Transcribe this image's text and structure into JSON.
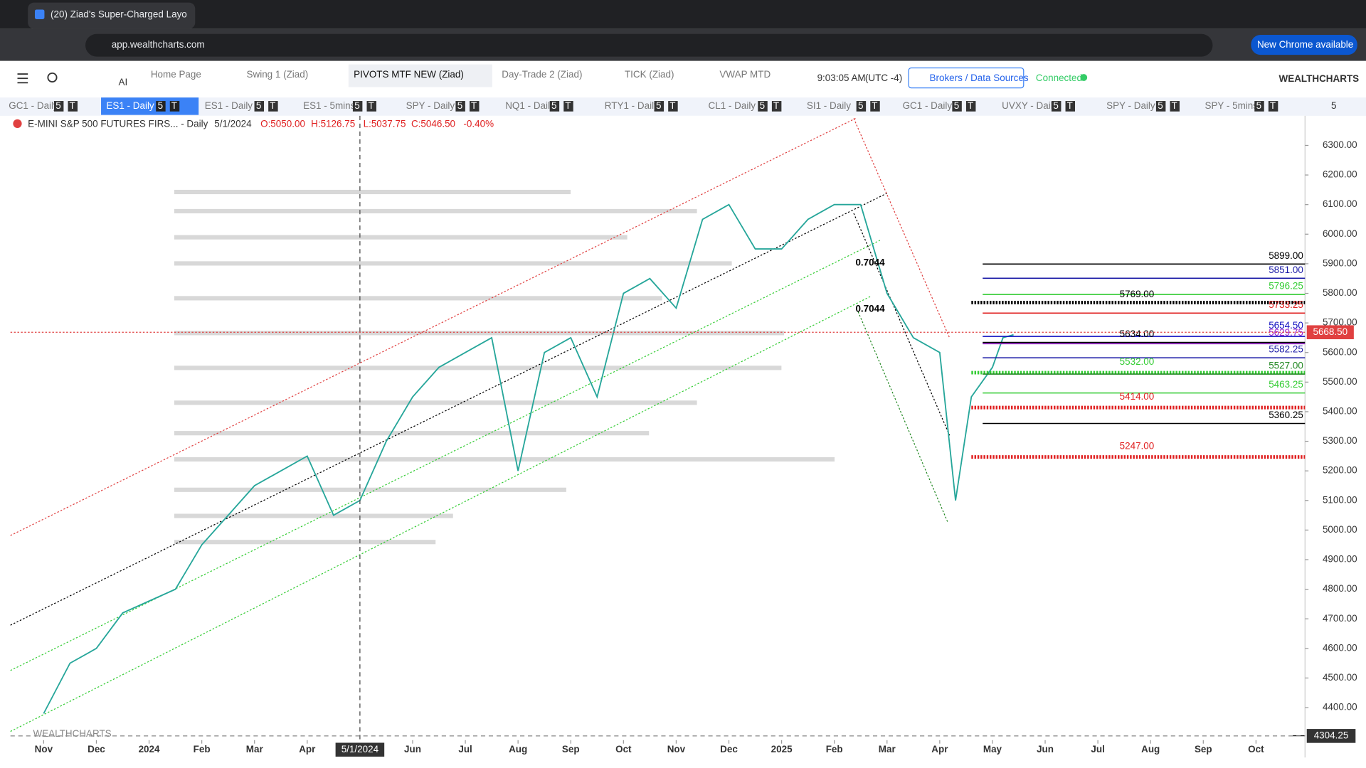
{
  "browser": {
    "tab_title": "(20) Ziad's Super-Charged Layo",
    "url": "app.wealthcharts.com",
    "update_button": "New Chrome available"
  },
  "toolbar": {
    "ai": "AI",
    "tabs": [
      "Home Page",
      "Swing 1 (Ziad)",
      "PIVOTS MTF NEW (Ziad)",
      "Day-Trade 2 (Ziad)",
      "TICK (Ziad)",
      "VWAP MTD"
    ],
    "active_tab": 2,
    "clock": "9:03:05 AM",
    "timezone": "(UTC -4)",
    "brokers": "Brokers / Data Sources",
    "status": "Connected",
    "brand": "WEALTHCHARTS"
  },
  "symbols": {
    "tabs": [
      "GC1 - Daily",
      "ES1 - Daily",
      "ES1 - Daily",
      "ES1 - 5mins",
      "SPY - Daily",
      "NQ1 - Daily",
      "RTY1 - Daily",
      "CL1 - Daily",
      "SI1 - Daily",
      "GC1 - Daily",
      "UVXY - Daily",
      "SPY - Daily",
      "SPY - 5mins"
    ],
    "active_tab": 1,
    "badges": [
      "5",
      "T"
    ],
    "count": "5"
  },
  "header": {
    "symbol": "E-MINI S&P 500 FUTURES FIRS... - Daily",
    "date": "5/1/2024",
    "open": "O:5050.00",
    "high": "H:5126.75",
    "low": "L:5037.75",
    "close": "C:5046.50",
    "change": "-0.40%"
  },
  "annotations": [
    "0.7044",
    "0.7044"
  ],
  "watermark": "WEALTHCHARTS",
  "chart_data": {
    "type": "line",
    "color": "#26a69a",
    "x": [
      0,
      0.5,
      1,
      1.5,
      2,
      2.5,
      3,
      3.5,
      4,
      4.5,
      5,
      5.5,
      6,
      6.5,
      7,
      7.5,
      8,
      8.5,
      9,
      9.5,
      10,
      10.5,
      11,
      11.5,
      12,
      12.5,
      13,
      13.5,
      14,
      14.5,
      15,
      15.5,
      16,
      16.5,
      17,
      17.3,
      17.6,
      18,
      18.2,
      18.4
    ],
    "values": [
      4380,
      4550,
      4600,
      4720,
      4760,
      4800,
      4950,
      5050,
      5150,
      5200,
      5250,
      5050,
      5100,
      5300,
      5450,
      5550,
      5600,
      5650,
      5200,
      5600,
      5650,
      5450,
      5800,
      5850,
      5750,
      6050,
      6100,
      5950,
      5950,
      6050,
      6100,
      6100,
      5800,
      5650,
      5600,
      5100,
      5450,
      5550,
      5650,
      5660
    ],
    "xlim": [
      -0.63,
      23.93
    ],
    "ylim": [
      4290,
      6400
    ],
    "xticks": [
      {
        "value": 0,
        "label": "Nov"
      },
      {
        "value": 1,
        "label": "Dec"
      },
      {
        "value": 2,
        "label": "2024"
      },
      {
        "value": 3,
        "label": "Feb"
      },
      {
        "value": 4,
        "label": "Mar"
      },
      {
        "value": 5,
        "label": "Apr"
      },
      {
        "value": 7,
        "label": "Jun"
      },
      {
        "value": 8,
        "label": "Jul"
      },
      {
        "value": 9,
        "label": "Aug"
      },
      {
        "value": 10,
        "label": "Sep"
      },
      {
        "value": 11,
        "label": "Oct"
      },
      {
        "value": 12,
        "label": "Nov"
      },
      {
        "value": 13,
        "label": "Dec"
      },
      {
        "value": 14,
        "label": "2025"
      },
      {
        "value": 15,
        "label": "Feb"
      },
      {
        "value": 16,
        "label": "Mar"
      },
      {
        "value": 17,
        "label": "Apr"
      },
      {
        "value": 18,
        "label": "May"
      },
      {
        "value": 19,
        "label": "Jun"
      },
      {
        "value": 20,
        "label": "Jul"
      },
      {
        "value": 21,
        "label": "Aug"
      },
      {
        "value": 22,
        "label": "Sep"
      },
      {
        "value": 23,
        "label": "Oct"
      }
    ],
    "yticks": [
      {
        "value": 4400,
        "label": "4400.00"
      },
      {
        "value": 4500,
        "label": "4500.00"
      },
      {
        "value": 4600,
        "label": "4600.00"
      },
      {
        "value": 4700,
        "label": "4700.00"
      },
      {
        "value": 4800,
        "label": "4800.00"
      },
      {
        "value": 4900,
        "label": "4900.00"
      },
      {
        "value": 5000,
        "label": "5000.00"
      },
      {
        "value": 5100,
        "label": "5100.00"
      },
      {
        "value": 5200,
        "label": "5200.00"
      },
      {
        "value": 5300,
        "label": "5300.00"
      },
      {
        "value": 5400,
        "label": "5400.00"
      },
      {
        "value": 5500,
        "label": "5500.00"
      },
      {
        "value": 5600,
        "label": "5600.00"
      },
      {
        "value": 5700,
        "label": "5700.00"
      },
      {
        "value": 5800,
        "label": "5800.00"
      },
      {
        "value": 5900,
        "label": "5900.00"
      },
      {
        "value": 6000,
        "label": "6000.00"
      },
      {
        "value": 6100,
        "label": "6100.00"
      },
      {
        "value": 6200,
        "label": "6200.00"
      },
      {
        "value": 6300,
        "label": "6300.00"
      }
    ],
    "crosshair": {
      "x": 6,
      "x_label": "5/1/2024",
      "y": 4304.25
    },
    "last_price": {
      "value": 5668.5,
      "label": "5668.50"
    },
    "levels": [
      {
        "value": 5899,
        "label": "5899.00",
        "color": "#000000",
        "style": "solid"
      },
      {
        "value": 5851,
        "label": "5851.00",
        "color": "#1a1aa6",
        "style": "solid"
      },
      {
        "value": 5796.25,
        "label": "5796.25",
        "color": "#33cc33",
        "style": "solid"
      },
      {
        "value": 5769,
        "label": "5769.00",
        "color": "#000000",
        "style": "dotted"
      },
      {
        "value": 5733.25,
        "label": "5733.25",
        "color": "#e02020",
        "style": "solid"
      },
      {
        "value": 5654.5,
        "label": "5654.50",
        "color": "#1010c0",
        "style": "solid"
      },
      {
        "value": 5634,
        "label": "5634.00",
        "color": "#000000",
        "style": "solid"
      },
      {
        "value": 5629.75,
        "label": "5629.75",
        "color": "#9922cc",
        "style": "solid"
      },
      {
        "value": 5582.25,
        "label": "5582.25",
        "color": "#1a1aa6",
        "style": "solid"
      },
      {
        "value": 5532,
        "label": "5532.00",
        "color": "#33cc33",
        "style": "dotted"
      },
      {
        "value": 5527,
        "label": "5527.00",
        "color": "#228822",
        "style": "solid"
      },
      {
        "value": 5463.25,
        "label": "5463.25",
        "color": "#33cc33",
        "style": "solid"
      },
      {
        "value": 5414,
        "label": "5414.00",
        "color": "#e02020",
        "style": "dotted"
      },
      {
        "value": 5360.25,
        "label": "5360.25",
        "color": "#000000",
        "style": "solid"
      },
      {
        "value": 5247,
        "label": "5247.00",
        "color": "#e02020",
        "style": "dotted"
      }
    ]
  }
}
